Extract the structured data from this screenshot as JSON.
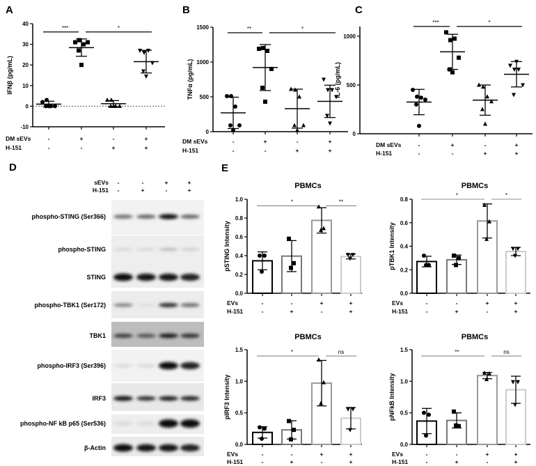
{
  "panels": {
    "A": "A",
    "B": "B",
    "C": "C",
    "D": "D",
    "E": "E"
  },
  "chart_data": [
    {
      "id": "A",
      "type": "scatter",
      "ylabel": "IFNβ (pg/mL)",
      "ylim": [
        -10,
        40
      ],
      "ticks": [
        -10,
        0,
        10,
        20,
        30,
        40
      ],
      "zero_line": "dashed",
      "conditions": [
        {
          "label": "DM sEVs",
          "values": [
            "-",
            "+",
            "-",
            "+"
          ]
        },
        {
          "label": "H-151",
          "values": [
            "-",
            "-",
            "+",
            "+"
          ]
        }
      ],
      "groups": [
        {
          "marker": "circle",
          "points": [
            2,
            3,
            0,
            0,
            0,
            0
          ],
          "mean": 1.0,
          "sd": 1.4
        },
        {
          "marker": "square",
          "points": [
            31,
            32,
            30,
            31,
            27,
            20
          ],
          "mean": 28.4,
          "sd": 4.2
        },
        {
          "marker": "triangle",
          "points": [
            3,
            3,
            0,
            0,
            0,
            0
          ],
          "mean": 1.2,
          "sd": 1.5
        },
        {
          "marker": "triangle-down",
          "points": [
            27,
            26,
            27,
            21,
            17,
            14.5
          ],
          "mean": 21.6,
          "sd": 5.5
        }
      ],
      "significance": [
        {
          "from": 0,
          "to": 1,
          "label": "***",
          "y": 36
        },
        {
          "from": 1,
          "to": 3,
          "label": "*",
          "y": 36
        }
      ]
    },
    {
      "id": "B",
      "type": "scatter",
      "ylabel": "TNFα (pg/mL)",
      "ylim": [
        0,
        1500
      ],
      "ticks": [
        0,
        500,
        1000,
        1500
      ],
      "conditions": [
        {
          "label": "DM sEVs",
          "values": [
            "-",
            "+",
            "-",
            "+"
          ]
        },
        {
          "label": "H-151",
          "values": [
            "-",
            "-",
            "+",
            "+"
          ]
        }
      ],
      "groups": [
        {
          "marker": "circle",
          "points": [
            510,
            510,
            360,
            90,
            90,
            20
          ],
          "mean": 270,
          "sd": 225
        },
        {
          "marker": "square",
          "points": [
            1190,
            1200,
            1160,
            900,
            630,
            430
          ],
          "mean": 920,
          "sd": 330
        },
        {
          "marker": "triangle",
          "points": [
            610,
            600,
            500,
            90,
            90,
            20
          ],
          "mean": 330,
          "sd": 280
        },
        {
          "marker": "triangle-down",
          "points": [
            750,
            600,
            600,
            500,
            230,
            120
          ],
          "mean": 435,
          "sd": 232
        }
      ],
      "significance": [
        {
          "from": 0,
          "to": 1,
          "label": "**",
          "y": 1420
        },
        {
          "from": 1,
          "to": 3,
          "label": "*",
          "y": 1420
        }
      ]
    },
    {
      "id": "C",
      "type": "scatter",
      "ylabel": "IL-6 (pg/mL)",
      "ylim": [
        0,
        1100
      ],
      "ticks": [
        0,
        500,
        1000
      ],
      "conditions": [
        {
          "label": "DM sEVs",
          "values": [
            "-",
            "+",
            "-",
            "+"
          ]
        },
        {
          "label": "H-151",
          "values": [
            "-",
            "-",
            "+",
            "+"
          ]
        }
      ],
      "groups": [
        {
          "marker": "circle",
          "points": [
            450,
            380,
            370,
            350,
            300,
            80
          ],
          "mean": 325,
          "sd": 130
        },
        {
          "marker": "square",
          "points": [
            1040,
            960,
            975,
            780,
            660,
            630
          ],
          "mean": 840,
          "sd": 180
        },
        {
          "marker": "triangle",
          "points": [
            500,
            480,
            380,
            330,
            250,
            100
          ],
          "mean": 345,
          "sd": 155
        },
        {
          "marker": "triangle-down",
          "points": [
            700,
            660,
            660,
            500,
            400,
            740
          ],
          "mean": 610,
          "sd": 130
        }
      ],
      "significance": [
        {
          "from": 0,
          "to": 1,
          "label": "***",
          "y": 1100
        },
        {
          "from": 1,
          "to": 3,
          "label": "*",
          "y": 1100
        }
      ]
    },
    {
      "id": "E1",
      "type": "bar",
      "title": "PBMCs",
      "ylabel": "pSTING Intensity",
      "ylim": [
        0,
        1.0
      ],
      "ticks": [
        "0.0",
        "0.2",
        "0.4",
        "0.6",
        "0.8",
        "1.0"
      ],
      "conditions": [
        {
          "label": "EVs",
          "values": [
            "-",
            "-",
            "+",
            "+"
          ]
        },
        {
          "label": "H-151",
          "values": [
            "-",
            "+",
            "-",
            "+"
          ]
        }
      ],
      "groups": [
        {
          "marker": "circle",
          "color": "#000000",
          "points": [
            0.4,
            0.4,
            0.23
          ],
          "mean": 0.345,
          "sd": 0.095
        },
        {
          "marker": "square",
          "color": "#777777",
          "points": [
            0.58,
            0.32,
            0.27
          ],
          "mean": 0.395,
          "sd": 0.165
        },
        {
          "marker": "triangle",
          "color": "#999999",
          "points": [
            0.92,
            0.69,
            0.67
          ],
          "mean": 0.775,
          "sd": 0.135
        },
        {
          "marker": "triangle-down",
          "color": "#cccccc",
          "points": [
            0.41,
            0.41,
            0.37
          ],
          "mean": 0.39,
          "sd": 0.025
        }
      ],
      "significance": [
        {
          "from": 0,
          "to": 2,
          "label": "*",
          "y": 0.93
        },
        {
          "from": 2,
          "to": 3,
          "label": "**",
          "y": 0.93
        }
      ]
    },
    {
      "id": "E2",
      "type": "bar",
      "title": "PBMCs",
      "ylabel": "pTBK1 Intensity",
      "ylim": [
        0,
        0.8
      ],
      "ticks": [
        "0.0",
        "0.2",
        "0.4",
        "0.6",
        "0.8"
      ],
      "conditions": [
        {
          "label": "EVs",
          "values": [
            "-",
            "-",
            "+",
            "+"
          ]
        },
        {
          "label": "H-151",
          "values": [
            "-",
            "+",
            "-",
            "+"
          ]
        }
      ],
      "groups": [
        {
          "marker": "circle",
          "color": "#000000",
          "points": [
            0.32,
            0.24,
            0.24
          ],
          "mean": 0.27,
          "sd": 0.045
        },
        {
          "marker": "square",
          "color": "#777777",
          "points": [
            0.32,
            0.3,
            0.24
          ],
          "mean": 0.285,
          "sd": 0.04
        },
        {
          "marker": "triangle",
          "color": "#999999",
          "points": [
            0.75,
            0.61,
            0.46
          ],
          "mean": 0.615,
          "sd": 0.145
        },
        {
          "marker": "triangle-down",
          "color": "#cccccc",
          "points": [
            0.38,
            0.38,
            0.32
          ],
          "mean": 0.355,
          "sd": 0.035
        }
      ],
      "significance": [
        {
          "from": 0,
          "to": 2,
          "label": "*",
          "y": 0.8
        },
        {
          "from": 2,
          "to": 3,
          "label": "*",
          "y": 0.8
        }
      ]
    },
    {
      "id": "E3",
      "type": "bar",
      "title": "PBMCs",
      "ylabel": "pIRF3 Intensity",
      "ylim": [
        0,
        1.5
      ],
      "ticks": [
        "0.0",
        "0.5",
        "1.0",
        "1.5"
      ],
      "conditions": [
        {
          "label": "EVs",
          "values": [
            "-",
            "-",
            "+",
            "+"
          ]
        },
        {
          "label": "H-151",
          "values": [
            "-",
            "+",
            "-",
            "+"
          ]
        }
      ],
      "groups": [
        {
          "marker": "circle",
          "color": "#000000",
          "points": [
            0.27,
            0.25,
            0.09
          ],
          "mean": 0.19,
          "sd": 0.09
        },
        {
          "marker": "square",
          "color": "#777777",
          "points": [
            0.37,
            0.23,
            0.08
          ],
          "mean": 0.23,
          "sd": 0.145
        },
        {
          "marker": "triangle",
          "color": "#999999",
          "points": [
            1.34,
            0.98,
            0.65
          ],
          "mean": 0.97,
          "sd": 0.36
        },
        {
          "marker": "triangle-down",
          "color": "#cccccc",
          "points": [
            0.56,
            0.56,
            0.23
          ],
          "mean": 0.415,
          "sd": 0.17
        }
      ],
      "significance": [
        {
          "from": 0,
          "to": 2,
          "label": "*",
          "y": 1.4
        },
        {
          "from": 2,
          "to": 3,
          "label": "ns",
          "y": 1.4
        }
      ]
    },
    {
      "id": "E4",
      "type": "bar",
      "title": "PBMCs",
      "ylabel": "pNFkB Intensity",
      "ylim": [
        0,
        1.5
      ],
      "ticks": [
        "0.0",
        "0.5",
        "1.0",
        "1.5"
      ],
      "conditions": [
        {
          "label": "EVs",
          "values": [
            "-",
            "-",
            "+",
            "+"
          ]
        },
        {
          "label": "H-151",
          "values": [
            "-",
            "+",
            "-",
            "+"
          ]
        }
      ],
      "groups": [
        {
          "marker": "circle",
          "color": "#000000",
          "points": [
            0.5,
            0.47,
            0.14
          ],
          "mean": 0.37,
          "sd": 0.2
        },
        {
          "marker": "square",
          "color": "#777777",
          "points": [
            0.52,
            0.29,
            0.3
          ],
          "mean": 0.38,
          "sd": 0.12
        },
        {
          "marker": "triangle",
          "color": "#999999",
          "points": [
            1.13,
            1.12,
            1.03
          ],
          "mean": 1.09,
          "sd": 0.05
        },
        {
          "marker": "triangle-down",
          "color": "#cccccc",
          "points": [
            0.99,
            0.99,
            0.63
          ],
          "mean": 0.865,
          "sd": 0.215
        }
      ],
      "significance": [
        {
          "from": 0,
          "to": 2,
          "label": "**",
          "y": 1.4
        },
        {
          "from": 2,
          "to": 3,
          "label": "ns",
          "y": 1.4
        }
      ]
    }
  ],
  "blot": {
    "conditions": [
      {
        "label": "sEVs",
        "values": [
          "-",
          "-",
          "+",
          "+"
        ]
      },
      {
        "label": "H-151",
        "values": [
          "-",
          "+",
          "-",
          "+"
        ]
      }
    ],
    "rows": [
      {
        "label": "phospho-STING (Ser366)",
        "intensity": [
          0.55,
          0.6,
          1.0,
          0.6
        ]
      },
      {
        "label": "phospho-STING",
        "intensity": [
          0.08,
          0.08,
          0.2,
          0.12
        ]
      },
      {
        "label": "STING",
        "intensity": [
          1.0,
          0.95,
          0.95,
          0.9
        ]
      },
      {
        "label": "phospho-TBK1 (Ser172)",
        "intensity": [
          0.45,
          0.05,
          0.8,
          0.55
        ]
      },
      {
        "label": "TBK1",
        "intensity": [
          0.75,
          0.65,
          0.9,
          0.8
        ]
      },
      {
        "label": "phospho-IRF3 (Ser396)",
        "intensity": [
          0.05,
          0.05,
          1.0,
          0.9
        ]
      },
      {
        "label": "IRF3",
        "intensity": [
          0.95,
          0.8,
          0.9,
          0.85
        ]
      },
      {
        "label": "phospho-NF kB p65 (Ser536)",
        "intensity": [
          0.05,
          0.05,
          1.0,
          1.0
        ]
      },
      {
        "label": "β-Actin",
        "intensity": [
          1.0,
          0.95,
          0.95,
          0.9
        ]
      }
    ]
  }
}
